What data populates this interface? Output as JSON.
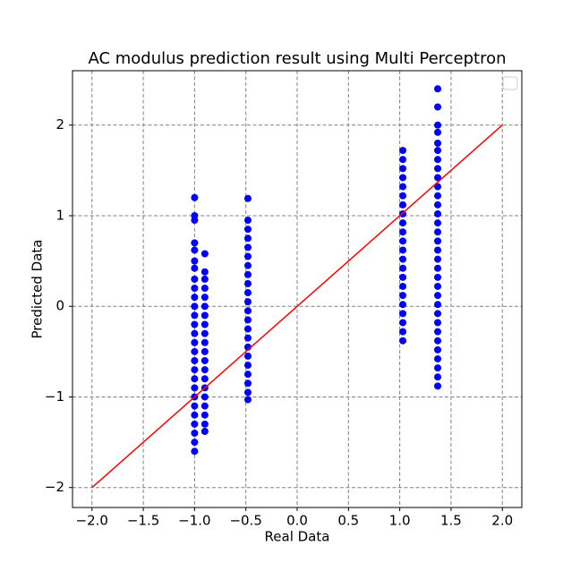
{
  "chart_data": {
    "type": "scatter",
    "title": "AC modulus prediction result using Multi Perceptron",
    "x_label": "Real Data",
    "y_label": "Predicted Data",
    "xlim": [
      -2.19,
      2.19
    ],
    "ylim": [
      -2.22,
      2.6
    ],
    "xticks": [
      {
        "value": -2.0,
        "label": "−2.0"
      },
      {
        "value": -1.5,
        "label": "−1.5"
      },
      {
        "value": -1.0,
        "label": "−1.0"
      },
      {
        "value": -0.5,
        "label": "−0.5"
      },
      {
        "value": 0,
        "label": "0.0"
      },
      {
        "value": 0.5,
        "label": "0.5"
      },
      {
        "value": 1.0,
        "label": "1.0"
      },
      {
        "value": 1.5,
        "label": "1.5"
      },
      {
        "value": 2.0,
        "label": "2.0"
      }
    ],
    "yticks": [
      {
        "value": -2,
        "label": "−2"
      },
      {
        "value": -1,
        "label": "−1"
      },
      0,
      1,
      2
    ],
    "grid": true,
    "legend": "upper right",
    "reference_line": {
      "color": "red",
      "x": [
        -2,
        2
      ],
      "values": [
        -2,
        2
      ]
    },
    "series": [
      {
        "color": "blue",
        "x": [
          -1.0,
          -1.0,
          -1.0,
          -1.0,
          -1.0,
          -1.0,
          -1.0,
          -1.0,
          -1.0,
          -1.0,
          -1.0,
          -1.0,
          -1.0,
          -1.0,
          -1.0,
          -1.0,
          -1.0,
          -1.0,
          -1.0,
          -1.0,
          -1.0,
          -1.0,
          -1.0,
          -1.0,
          -1.0,
          -1.0,
          -1.0
        ],
        "values": [
          1.2,
          1.0,
          0.95,
          0.7,
          0.62,
          0.5,
          0.42,
          0.3,
          0.2,
          0.1,
          0,
          -0.1,
          -0.2,
          -0.3,
          -0.4,
          -0.5,
          -0.6,
          -0.7,
          -0.8,
          -0.9,
          -1.0,
          -1.1,
          -1.2,
          -1.3,
          -1.4,
          -1.5,
          -1.6
        ]
      },
      {
        "color": "blue",
        "x": [
          -0.9,
          -0.9,
          -0.9,
          -0.9,
          -0.9,
          -0.9,
          -0.9,
          -0.9,
          -0.9,
          -0.9,
          -0.9,
          -0.9,
          -0.9,
          -0.9,
          -0.9,
          -0.9,
          -0.9,
          -0.9,
          -0.9,
          -0.9
        ],
        "values": [
          0.58,
          0.38,
          0.3,
          0.2,
          0.1,
          0,
          -0.1,
          -0.2,
          -0.3,
          -0.4,
          -0.5,
          -0.6,
          -0.7,
          -0.8,
          -0.9,
          -1.0,
          -1.1,
          -1.2,
          -1.3,
          -1.38
        ]
      },
      {
        "color": "blue",
        "x": [
          -0.48,
          -0.48,
          -0.48,
          -0.48,
          -0.48,
          -0.48,
          -0.48,
          -0.48,
          -0.48,
          -0.48,
          -0.48,
          -0.48,
          -0.48,
          -0.48,
          -0.48,
          -0.48,
          -0.48,
          -0.48,
          -0.48,
          -0.48,
          -0.48,
          -0.48
        ],
        "values": [
          1.19,
          0.95,
          0.85,
          0.75,
          0.65,
          0.55,
          0.45,
          0.35,
          0.25,
          0.15,
          0.05,
          -0.05,
          -0.15,
          -0.25,
          -0.35,
          -0.45,
          -0.55,
          -0.65,
          -0.75,
          -0.85,
          -0.95,
          -1.03
        ]
      },
      {
        "color": "blue",
        "x": [
          1.03,
          1.03,
          1.03,
          1.03,
          1.03,
          1.03,
          1.03,
          1.03,
          1.03,
          1.03,
          1.03,
          1.03,
          1.03,
          1.03,
          1.03,
          1.03,
          1.03,
          1.03,
          1.03,
          1.03,
          1.03,
          1.03
        ],
        "values": [
          1.72,
          1.62,
          1.52,
          1.42,
          1.32,
          1.22,
          1.12,
          1.02,
          0.92,
          0.82,
          0.72,
          0.62,
          0.52,
          0.42,
          0.32,
          0.22,
          0.12,
          0.02,
          -0.08,
          -0.18,
          -0.28,
          -0.38
        ]
      },
      {
        "color": "blue",
        "x": [
          1.37,
          1.37,
          1.37,
          1.37,
          1.37,
          1.37,
          1.37,
          1.37,
          1.37,
          1.37,
          1.37,
          1.37,
          1.37,
          1.37,
          1.37,
          1.37,
          1.37,
          1.37,
          1.37,
          1.37,
          1.37,
          1.37,
          1.37,
          1.37,
          1.37,
          1.37,
          1.37,
          1.37,
          1.37,
          1.37,
          1.37,
          1.37
        ],
        "values": [
          2.4,
          2.2,
          2.0,
          1.92,
          1.8,
          1.72,
          1.62,
          1.52,
          1.42,
          1.32,
          1.22,
          1.12,
          1.02,
          0.92,
          0.82,
          0.72,
          0.62,
          0.52,
          0.42,
          0.32,
          0.22,
          0.12,
          0.02,
          -0.08,
          -0.18,
          -0.28,
          -0.38,
          -0.48,
          -0.58,
          -0.68,
          -0.78,
          -0.88
        ]
      }
    ]
  }
}
